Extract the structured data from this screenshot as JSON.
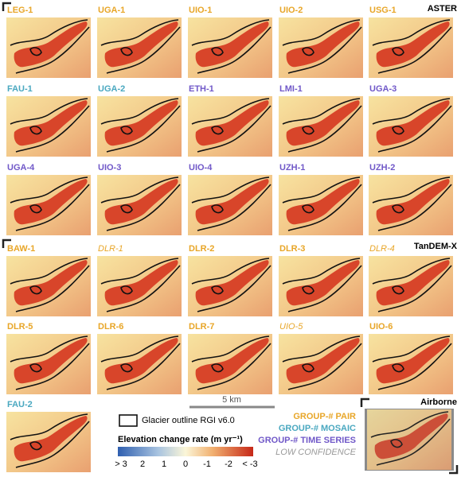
{
  "sections": [
    {
      "title": "ASTER",
      "panels": [
        {
          "label": "LEG-1",
          "color": "#e8a628"
        },
        {
          "label": "UGA-1",
          "color": "#e8a628"
        },
        {
          "label": "UIO-1",
          "color": "#e8a628"
        },
        {
          "label": "UIO-2",
          "color": "#e8a628"
        },
        {
          "label": "USG-1",
          "color": "#e8a628"
        },
        {
          "label": "FAU-1",
          "color": "#4aa8c0"
        },
        {
          "label": "UGA-2",
          "color": "#4aa8c0"
        },
        {
          "label": "ETH-1",
          "color": "#7058c8"
        },
        {
          "label": "LMI-1",
          "color": "#7058c8"
        },
        {
          "label": "UGA-3",
          "color": "#7058c8"
        },
        {
          "label": "UGA-4",
          "color": "#7058c8"
        },
        {
          "label": "UIO-3",
          "color": "#7058c8"
        },
        {
          "label": "UIO-4",
          "color": "#7058c8"
        },
        {
          "label": "UZH-1",
          "color": "#7058c8"
        },
        {
          "label": "UZH-2",
          "color": "#7058c8"
        }
      ]
    },
    {
      "title": "TanDEM-X",
      "panels": [
        {
          "label": "BAW-1",
          "color": "#e8a628"
        },
        {
          "label": "DLR-1",
          "color": "#e8a628",
          "italic": true
        },
        {
          "label": "DLR-2",
          "color": "#e8a628"
        },
        {
          "label": "DLR-3",
          "color": "#e8a628"
        },
        {
          "label": "DLR-4",
          "color": "#e8a628",
          "italic": true
        },
        {
          "label": "DLR-5",
          "color": "#e8a628"
        },
        {
          "label": "DLR-6",
          "color": "#e8a628"
        },
        {
          "label": "DLR-7",
          "color": "#e8a628"
        },
        {
          "label": "UIO-5",
          "color": "#e8a628",
          "italic": true
        },
        {
          "label": "UIO-6",
          "color": "#e8a628"
        },
        {
          "label": "FAU-2",
          "color": "#4aa8c0"
        }
      ]
    },
    {
      "title": "Airborne",
      "panels": []
    }
  ],
  "legend": {
    "scale": "5 km",
    "outline": "Glacier outline RGI v6.0",
    "colorbar_title": "Elevation change rate (m yr⁻¹)",
    "colorbar_ticks": [
      "> 3",
      "2",
      "1",
      "0",
      "-1",
      "-2",
      "< -3"
    ],
    "groups": [
      {
        "label": "GROUP-# PAIR",
        "color": "#e8a628"
      },
      {
        "label": "GROUP-# MOSAIC",
        "color": "#4aa8c0"
      },
      {
        "label": "GROUP-# TIME SERIES",
        "color": "#7058c8"
      },
      {
        "label": "LOW CONFIDENCE",
        "color": "#999999",
        "italic": true
      }
    ]
  }
}
